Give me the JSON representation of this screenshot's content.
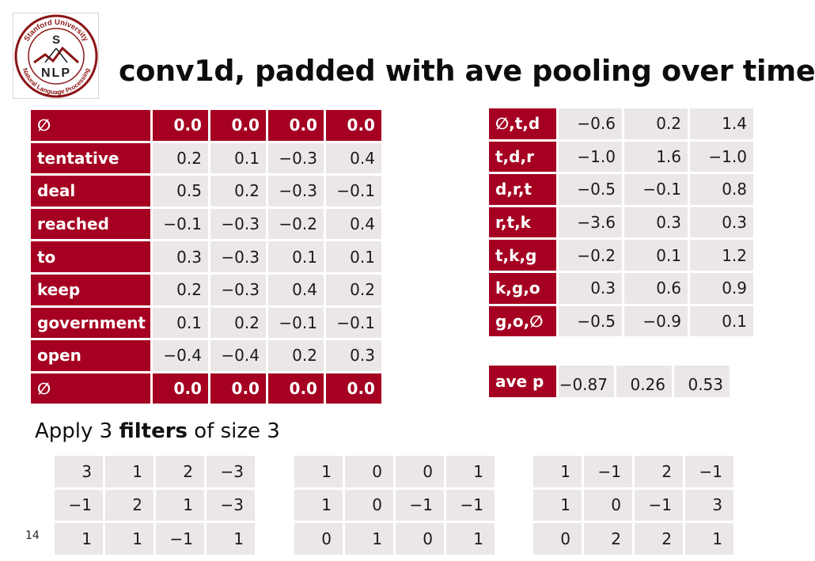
{
  "slide": {
    "title": "conv1d, padded with ave pooling over time",
    "page_number": "14",
    "logo": {
      "text": "Stanford University Natural Language Processing",
      "letters": "S NLP"
    }
  },
  "word_table": {
    "rows": [
      {
        "label": "∅",
        "values": [
          "0.0",
          "0.0",
          "0.0",
          "0.0"
        ],
        "header": true
      },
      {
        "label": "tentative",
        "values": [
          "0.2",
          "0.1",
          "−0.3",
          "0.4"
        ]
      },
      {
        "label": "deal",
        "values": [
          "0.5",
          "0.2",
          "−0.3",
          "−0.1"
        ]
      },
      {
        "label": "reached",
        "values": [
          "−0.1",
          "−0.3",
          "−0.2",
          "0.4"
        ]
      },
      {
        "label": "to",
        "values": [
          "0.3",
          "−0.3",
          "0.1",
          "0.1"
        ]
      },
      {
        "label": "keep",
        "values": [
          "0.2",
          "−0.3",
          "0.4",
          "0.2"
        ]
      },
      {
        "label": "government",
        "values": [
          "0.1",
          "0.2",
          "−0.1",
          "−0.1"
        ]
      },
      {
        "label": "open",
        "values": [
          "−0.4",
          "−0.4",
          "0.2",
          "0.3"
        ]
      },
      {
        "label": "∅",
        "values": [
          "0.0",
          "0.0",
          "0.0",
          "0.0"
        ],
        "header": true
      }
    ]
  },
  "result_table": {
    "rows": [
      {
        "label": "∅,t,d",
        "values": [
          "−0.6",
          "0.2",
          "1.4"
        ]
      },
      {
        "label": "t,d,r",
        "values": [
          "−1.0",
          "1.6",
          "−1.0"
        ]
      },
      {
        "label": "d,r,t",
        "values": [
          "−0.5",
          "−0.1",
          "0.8"
        ]
      },
      {
        "label": "r,t,k",
        "values": [
          "−3.6",
          "0.3",
          "0.3"
        ]
      },
      {
        "label": "t,k,g",
        "values": [
          "−0.2",
          "0.1",
          "1.2"
        ]
      },
      {
        "label": "k,g,o",
        "values": [
          "0.3",
          "0.6",
          "0.9"
        ]
      },
      {
        "label": "g,o,∅",
        "values": [
          "−0.5",
          "−0.9",
          "0.1"
        ]
      }
    ]
  },
  "average": {
    "label": "ave p",
    "values": [
      "−0.87",
      "0.26",
      "0.53"
    ]
  },
  "apply_text": {
    "prefix": "Apply 3 ",
    "bold": "filters",
    "suffix": " of size 3"
  },
  "filters": [
    [
      [
        "3",
        "1",
        "2",
        "−3"
      ],
      [
        "−1",
        "2",
        "1",
        "−3"
      ],
      [
        "1",
        "1",
        "−1",
        "1"
      ]
    ],
    [
      [
        "1",
        "0",
        "0",
        "1"
      ],
      [
        "1",
        "0",
        "−1",
        "−1"
      ],
      [
        "0",
        "1",
        "0",
        "1"
      ]
    ],
    [
      [
        "1",
        "−1",
        "2",
        "−1"
      ],
      [
        "1",
        "0",
        "−1",
        "3"
      ],
      [
        "0",
        "2",
        "2",
        "1"
      ]
    ]
  ],
  "colors": {
    "label_bg": "#a50021",
    "cell_bg": "#ece7e7",
    "logo_red": "#8c1515"
  }
}
